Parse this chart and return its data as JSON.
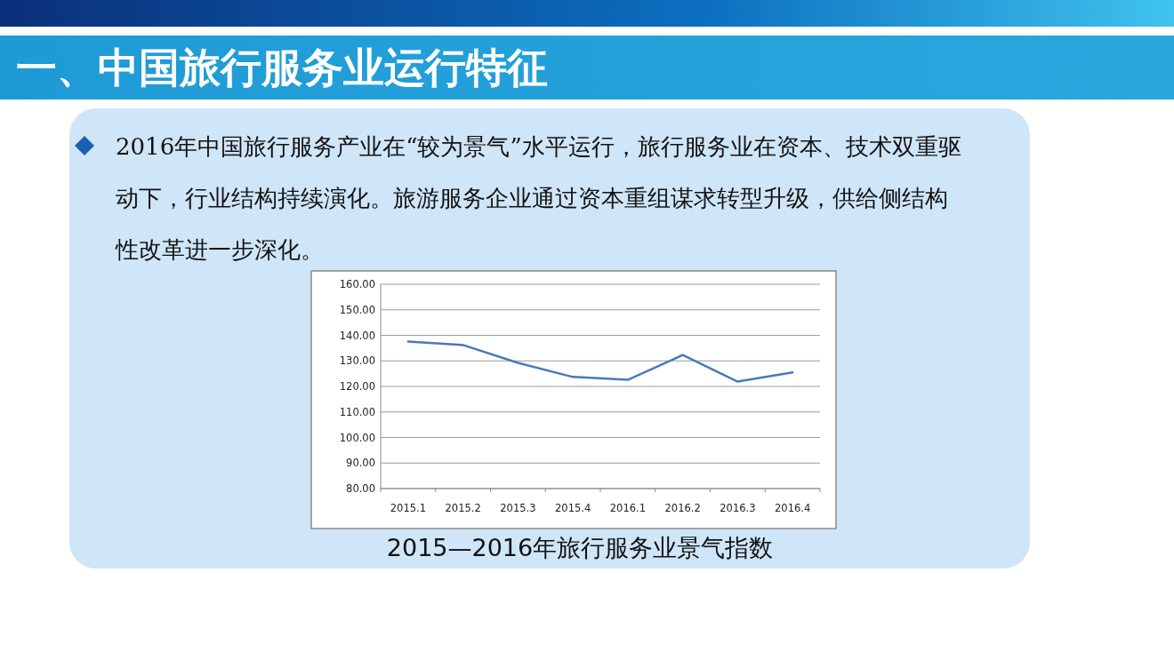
{
  "chart_data": {
    "type": "line",
    "title": "一、中国旅行服务业运行特征",
    "subtitle": "2016年中国旅行服务产业在“较为景气”水平运行，旅行服务业在资本、技术双重驱动下，行业结构持续演化。旅游服务企业通过资本重组谋求转型升级，供给侧结构性改革进一步深化。",
    "annotations": [
      "2015—2016年旅行服务业景气指数"
    ],
    "categories": [
      "2015.1",
      "2015.2",
      "2015.3",
      "2015.4",
      "2016.1",
      "2016.2",
      "2016.3",
      "2016.4"
    ],
    "series": [
      {
        "color": "#4a7ab5",
        "values": [
          137.6,
          136.2,
          129.2,
          123.7,
          122.6,
          132.3,
          121.9,
          125.5
        ]
      }
    ],
    "ylim": [
      80,
      160
    ],
    "yticks": [
      {
        "value": 80,
        "label": "80.00"
      },
      {
        "value": 90,
        "label": "90.00"
      },
      {
        "value": 100,
        "label": "100.00"
      },
      {
        "value": 110,
        "label": "110.00"
      },
      {
        "value": 120,
        "label": "120.00"
      },
      {
        "value": 130,
        "label": "130.00"
      },
      {
        "value": 140,
        "label": "140.00"
      },
      {
        "value": 150,
        "label": "150.00"
      },
      {
        "value": 160,
        "label": "160.00"
      }
    ],
    "grid": "y",
    "marker": "none",
    "line_style": "solid"
  }
}
